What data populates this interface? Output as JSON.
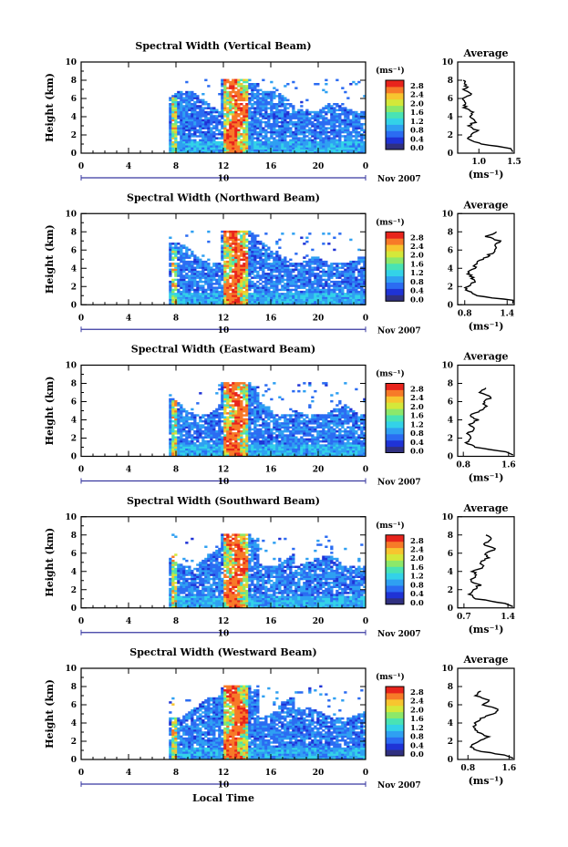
{
  "colors": {
    "colormap": [
      "#303080",
      "#1f33d6",
      "#2b6cf2",
      "#2fa0f2",
      "#33d2e8",
      "#49e3b4",
      "#8ce86a",
      "#d4e83a",
      "#f7c52f",
      "#f77a28",
      "#e8241c"
    ],
    "profile_line": "#000000",
    "axes": "#000000"
  },
  "shared": {
    "ylabel": "Height (km)",
    "xlabel": "Local Time",
    "date_label": "Nov 2007",
    "day_label": "10",
    "cbar_unit": "(ms⁻¹)",
    "avg_title": "Average",
    "avg_xlabel": "(ms⁻¹)",
    "xticks": [
      "0",
      "4",
      "8",
      "12",
      "16",
      "20",
      "0"
    ],
    "yticks": [
      "0",
      "2",
      "4",
      "6",
      "8",
      "10"
    ],
    "cbar_ticks": [
      "0.0",
      "0.4",
      "0.8",
      "1.2",
      "1.6",
      "2.0",
      "2.4",
      "2.8"
    ]
  },
  "chart_data": [
    {
      "type": "heatmap",
      "title": "Spectral Width (Vertical Beam)",
      "xlim": [
        0,
        24
      ],
      "ylim": [
        0,
        10
      ],
      "colorbar_range": [
        0.0,
        2.8
      ],
      "data_window": {
        "start_hour": 7.4,
        "end_hour": 24
      },
      "avg_profile": {
        "title": "Average",
        "xlim": [
          0.7,
          1.5
        ],
        "xticks": [
          "1.0",
          "1.5"
        ],
        "ylim": [
          0,
          10
        ],
        "height_km": [
          0.5,
          1.0,
          1.5,
          2.0,
          2.5,
          3.0,
          3.5,
          4.0,
          4.5,
          5.0,
          5.5,
          6.0,
          6.5,
          7.0,
          7.5,
          8.0
        ],
        "value": [
          1.45,
          1.05,
          0.85,
          0.88,
          0.98,
          0.85,
          0.96,
          0.86,
          0.9,
          0.8,
          0.82,
          0.78,
          0.88,
          0.8,
          0.83,
          0.78
        ]
      }
    },
    {
      "type": "heatmap",
      "title": "Spectral Width (Northward Beam)",
      "xlim": [
        0,
        24
      ],
      "ylim": [
        0,
        10
      ],
      "colorbar_range": [
        0.0,
        2.8
      ],
      "data_window": {
        "start_hour": 7.4,
        "end_hour": 24
      },
      "avg_profile": {
        "title": "Average",
        "xlim": [
          0.7,
          1.5
        ],
        "xticks": [
          "0.8",
          "1.4"
        ],
        "ylim": [
          0,
          10
        ],
        "height_km": [
          0.5,
          1.0,
          1.5,
          2.0,
          2.5,
          3.0,
          3.5,
          4.0,
          4.5,
          5.0,
          5.5,
          6.0,
          6.5,
          7.0,
          7.5,
          8.0
        ],
        "value": [
          1.48,
          0.95,
          0.85,
          0.82,
          0.95,
          0.9,
          0.84,
          0.93,
          0.96,
          1.05,
          1.15,
          1.25,
          1.2,
          1.3,
          1.1,
          1.25
        ]
      }
    },
    {
      "type": "heatmap",
      "title": "Spectral Width (Eastward Beam)",
      "xlim": [
        0,
        24
      ],
      "ylim": [
        0,
        10
      ],
      "colorbar_range": [
        0.0,
        2.8
      ],
      "data_window": {
        "start_hour": 7.4,
        "end_hour": 24
      },
      "avg_profile": {
        "title": "Average",
        "xlim": [
          0.7,
          1.7
        ],
        "xticks": [
          "0.8",
          "1.6"
        ],
        "ylim": [
          0,
          10
        ],
        "height_km": [
          0.5,
          1.0,
          1.5,
          2.0,
          2.5,
          3.0,
          3.5,
          4.0,
          4.5,
          5.0,
          5.5,
          6.0,
          6.5,
          7.0,
          7.5
        ],
        "value": [
          1.55,
          1.0,
          0.85,
          0.95,
          0.88,
          1.0,
          0.9,
          1.05,
          0.92,
          1.1,
          1.2,
          1.15,
          1.3,
          1.1,
          1.2
        ]
      }
    },
    {
      "type": "heatmap",
      "title": "Spectral Width (Southward Beam)",
      "xlim": [
        0,
        24
      ],
      "ylim": [
        0,
        10
      ],
      "colorbar_range": [
        0.0,
        2.8
      ],
      "data_window": {
        "start_hour": 7.4,
        "end_hour": 24
      },
      "avg_profile": {
        "title": "Average",
        "xlim": [
          0.6,
          1.5
        ],
        "xticks": [
          "0.7",
          "1.4"
        ],
        "ylim": [
          0,
          10
        ],
        "height_km": [
          0.5,
          1.0,
          1.5,
          2.0,
          2.5,
          3.0,
          3.5,
          4.0,
          4.5,
          5.0,
          5.5,
          6.0,
          6.5,
          7.0,
          7.5,
          8.0
        ],
        "value": [
          1.35,
          0.9,
          0.8,
          0.85,
          0.95,
          0.8,
          0.9,
          0.85,
          1.0,
          0.95,
          1.1,
          1.05,
          1.2,
          1.0,
          1.15,
          1.05
        ]
      }
    },
    {
      "type": "heatmap",
      "title": "Spectral Width (Westward Beam)",
      "xlim": [
        0,
        24
      ],
      "ylim": [
        0,
        10
      ],
      "colorbar_range": [
        0.0,
        2.8
      ],
      "data_window": {
        "start_hour": 7.4,
        "end_hour": 24
      },
      "avg_profile": {
        "title": "Average",
        "xlim": [
          0.6,
          1.7
        ],
        "xticks": [
          "0.8",
          "1.6"
        ],
        "ylim": [
          0,
          10
        ],
        "height_km": [
          0.5,
          1.0,
          1.5,
          2.0,
          2.5,
          3.0,
          3.5,
          4.0,
          4.5,
          5.0,
          5.5,
          6.0,
          6.5,
          7.0,
          7.5
        ],
        "value": [
          1.5,
          0.95,
          0.85,
          1.0,
          1.2,
          1.0,
          0.9,
          0.95,
          1.05,
          1.3,
          1.4,
          1.1,
          1.2,
          0.95,
          1.05
        ]
      }
    }
  ]
}
